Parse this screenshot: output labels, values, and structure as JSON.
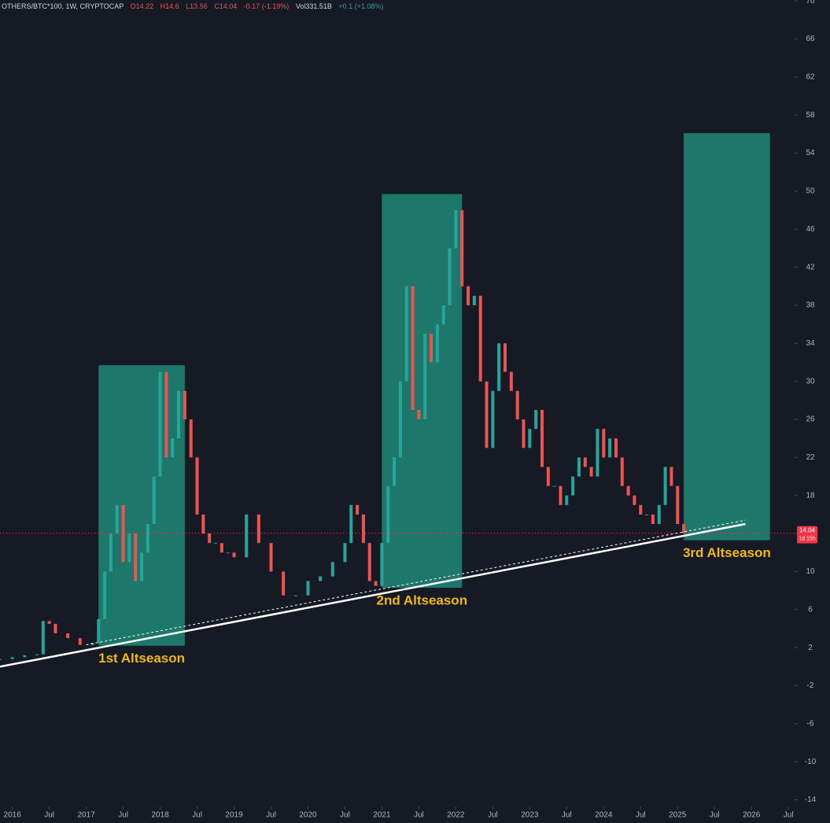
{
  "header": {
    "symbol": "OTHERS/BTC*100, 1W, CRYPTOCAP",
    "open": "O14.22",
    "high": "H14.6",
    "low": "L13.56",
    "close": "C14.04",
    "change": "-0.17 (-1.19%)",
    "volume": "Vol331.51B",
    "volume_change": "+0.1 (+1.08%)"
  },
  "chart_data": {
    "type": "candle-line",
    "x": [
      "2015-11",
      "2016-01",
      "2016-03",
      "2016-05",
      "2016-06",
      "2016-07",
      "2016-08",
      "2016-10",
      "2016-12",
      "2017-02",
      "2017-03",
      "2017-04",
      "2017-05",
      "2017-06",
      "2017-07",
      "2017-08",
      "2017-09",
      "2017-10",
      "2017-11",
      "2017-12",
      "2018-01",
      "2018-02",
      "2018-03",
      "2018-04",
      "2018-05",
      "2018-06",
      "2018-07",
      "2018-08",
      "2018-09",
      "2018-10",
      "2018-11",
      "2018-12",
      "2019-01",
      "2019-03",
      "2019-05",
      "2019-07",
      "2019-09",
      "2019-11",
      "2020-01",
      "2020-03",
      "2020-05",
      "2020-07",
      "2020-08",
      "2020-09",
      "2020-10",
      "2020-11",
      "2020-12",
      "2021-01",
      "2021-02",
      "2021-03",
      "2021-04",
      "2021-05",
      "2021-06",
      "2021-07",
      "2021-08",
      "2021-09",
      "2021-10",
      "2021-11",
      "2021-12",
      "2022-01",
      "2022-02",
      "2022-03",
      "2022-04",
      "2022-05",
      "2022-06",
      "2022-07",
      "2022-08",
      "2022-09",
      "2022-10",
      "2022-11",
      "2022-12",
      "2023-01",
      "2023-02",
      "2023-03",
      "2023-04",
      "2023-05",
      "2023-06",
      "2023-07",
      "2023-08",
      "2023-09",
      "2023-10",
      "2023-11",
      "2023-12",
      "2024-01",
      "2024-02",
      "2024-03",
      "2024-04",
      "2024-05",
      "2024-06",
      "2024-07",
      "2024-08",
      "2024-09",
      "2024-10",
      "2024-11",
      "2024-12",
      "2025-01",
      "2025-02"
    ],
    "values": [
      0.8,
      1.0,
      1.2,
      1.3,
      4.8,
      4.5,
      3.5,
      3.0,
      2.3,
      2.5,
      5.0,
      10,
      14,
      17,
      11,
      14,
      9,
      12,
      15,
      20,
      31,
      22,
      24,
      29,
      26,
      22,
      16,
      14,
      13,
      13,
      12,
      12,
      11.5,
      16,
      13,
      10,
      7.5,
      7.5,
      9,
      9.5,
      11,
      13,
      17,
      16,
      13,
      9,
      8.5,
      13,
      19,
      22,
      30,
      40,
      27,
      26,
      35,
      32,
      36,
      38,
      44,
      48,
      40,
      38,
      39,
      30,
      23,
      29,
      34,
      31,
      29,
      26,
      23,
      25,
      27,
      21,
      19,
      19,
      17,
      18,
      20,
      22,
      21,
      20,
      25,
      22,
      24,
      22,
      19,
      18,
      17,
      16,
      16,
      15,
      17,
      21,
      19,
      15,
      14.04
    ],
    "up_color": "#26a69a",
    "down_color": "#ef5350",
    "xlim": [
      "2015-11",
      "2026-08"
    ],
    "xticks": [
      {
        "value": "2016-01",
        "label": "2016"
      },
      {
        "value": "2016-07",
        "label": "Jul"
      },
      {
        "value": "2017-01",
        "label": "2017"
      },
      {
        "value": "2017-07",
        "label": "Jul"
      },
      {
        "value": "2018-01",
        "label": "2018"
      },
      {
        "value": "2018-07",
        "label": "Jul"
      },
      {
        "value": "2019-01",
        "label": "2019"
      },
      {
        "value": "2019-07",
        "label": "Jul"
      },
      {
        "value": "2020-01",
        "label": "2020"
      },
      {
        "value": "2020-07",
        "label": "Jul"
      },
      {
        "value": "2021-01",
        "label": "2021"
      },
      {
        "value": "2021-07",
        "label": "Jul"
      },
      {
        "value": "2022-01",
        "label": "2022"
      },
      {
        "value": "2022-07",
        "label": "Jul"
      },
      {
        "value": "2023-01",
        "label": "2023"
      },
      {
        "value": "2023-07",
        "label": "Jul"
      },
      {
        "value": "2024-01",
        "label": "2024"
      },
      {
        "value": "2024-07",
        "label": "Jul"
      },
      {
        "value": "2025-01",
        "label": "2025"
      },
      {
        "value": "2025-07",
        "label": "Jul"
      },
      {
        "value": "2026-01",
        "label": "2026"
      },
      {
        "value": "2026-07",
        "label": "Jul"
      }
    ],
    "ylim": [
      -14.7,
      70.1
    ],
    "yticks": [
      -14,
      -10,
      -6,
      -2,
      2,
      6,
      10,
      14,
      18,
      22,
      26,
      30,
      34,
      38,
      42,
      46,
      50,
      54,
      58,
      62,
      66,
      70
    ],
    "last_price": {
      "value": 14.04,
      "countdown": "1d 15h",
      "color": "#f23645"
    },
    "zones": [
      {
        "label": "1st Altseason",
        "x": [
          "2017-03",
          "2018-05"
        ],
        "y": [
          2.2,
          31.7
        ],
        "color": "#1f8a78"
      },
      {
        "label": "2nd Altseason",
        "x": [
          "2021-01",
          "2022-02"
        ],
        "y": [
          8.3,
          49.7
        ],
        "color": "#1f8a78"
      },
      {
        "label": "3rd Altseason",
        "x": [
          "2025-02",
          "2026-04"
        ],
        "y": [
          13.3,
          56.1
        ],
        "color": "#1f8a78"
      }
    ],
    "label_color": "#f0b90b",
    "trendlines": [
      {
        "x": [
          "2015-11",
          "2025-12"
        ],
        "y": [
          0,
          15
        ],
        "dashed": false
      },
      {
        "x": [
          "2017-01",
          "2025-12"
        ],
        "y": [
          2.3,
          15.4
        ],
        "dashed": true
      }
    ]
  }
}
